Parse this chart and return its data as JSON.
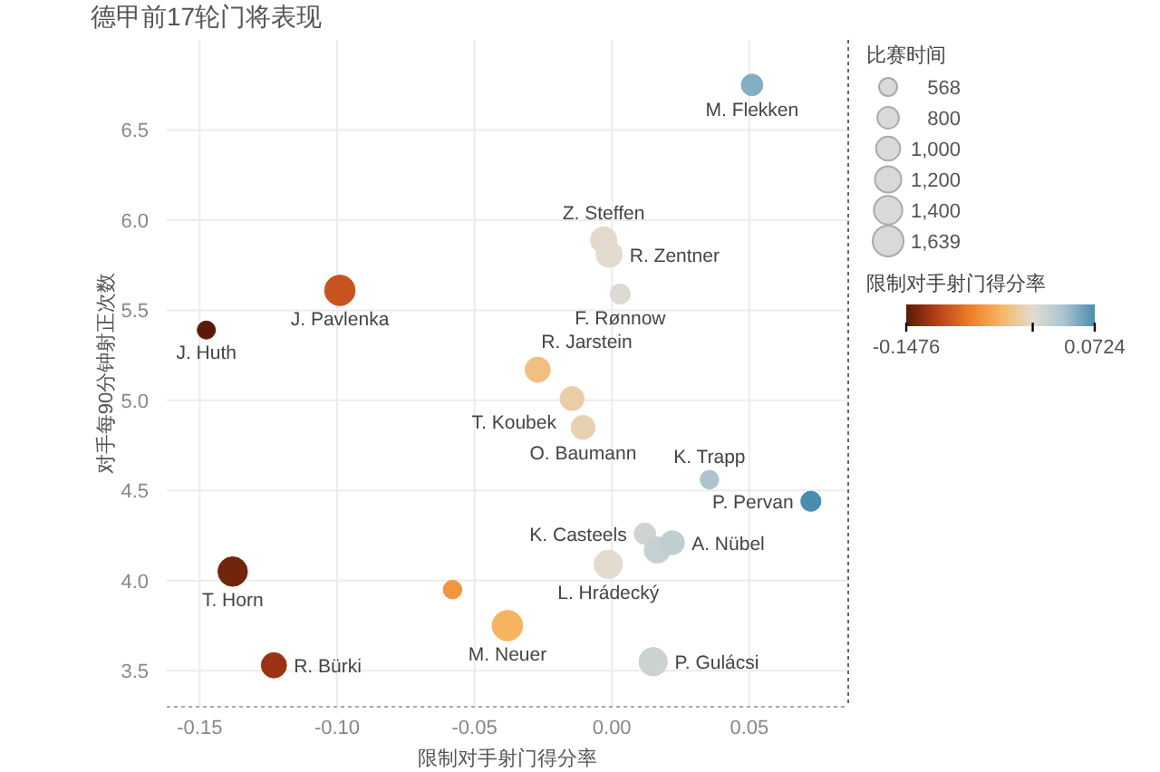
{
  "chart_data": {
    "type": "bubble",
    "title": "德甲前17轮门将表现",
    "xlabel": "限制对手射门得分率",
    "ylabel": "对手每90分钟射正次数",
    "legend_title": "比赛时间",
    "clabel": "限制对手射门得分率",
    "xlim": [
      -0.162,
      0.086
    ],
    "ylim": [
      3.3,
      7.0
    ],
    "xticks": [
      {
        "value": -0.15,
        "label": "-0.15"
      },
      {
        "value": -0.1,
        "label": "-0.10"
      },
      {
        "value": -0.05,
        "label": "-0.05"
      },
      {
        "value": 0,
        "label": "0.00"
      },
      {
        "value": 0.05,
        "label": "0.05"
      }
    ],
    "yticks": [
      3.5,
      {
        "value": 4,
        "label": "4.0"
      },
      4.5,
      {
        "value": 5,
        "label": "5.0"
      },
      5.5,
      {
        "value": 6,
        "label": "6.0"
      },
      6.5
    ],
    "grid": true,
    "legend": "right",
    "marker": "circle",
    "size_legend": [
      568,
      800,
      {
        "value": 1000,
        "label": "1,000"
      },
      {
        "value": 1200,
        "label": "1,200"
      },
      {
        "value": 1400,
        "label": "1,400"
      },
      {
        "value": 1639,
        "label": "1,639"
      }
    ],
    "clim": [
      -0.1476,
      0.0724
    ],
    "cticks": [
      -0.1476,
      {
        "value": 0,
        "label": null
      },
      0.0724
    ],
    "series": [
      {
        "name": "M. Flekken",
        "x": [
          0.051
        ],
        "values": [
          6.75
        ],
        "sizes": [
          800
        ],
        "cvalues": [
          0.051
        ]
      },
      {
        "name": "Z. Steffen",
        "x": [
          -0.003
        ],
        "values": [
          5.89
        ],
        "sizes": [
          1200
        ],
        "cvalues": [
          -0.003
        ]
      },
      {
        "name": "R. Zentner",
        "x": [
          -0.001
        ],
        "values": [
          5.81
        ],
        "sizes": [
          1200
        ],
        "cvalues": [
          -0.001
        ]
      },
      {
        "name": "F. Rønnow",
        "x": [
          0.003
        ],
        "values": [
          5.59
        ],
        "sizes": [
          700
        ],
        "cvalues": [
          0.003
        ]
      },
      {
        "name": "J. Pavlenka",
        "x": [
          -0.099
        ],
        "values": [
          5.61
        ],
        "sizes": [
          1600
        ],
        "cvalues": [
          -0.099
        ]
      },
      {
        "name": "J. Huth",
        "x": [
          -0.1476
        ],
        "values": [
          5.39
        ],
        "sizes": [
          568
        ],
        "cvalues": [
          -0.1476
        ]
      },
      {
        "name": "R. Jarstein",
        "x": [
          -0.027
        ],
        "values": [
          5.17
        ],
        "sizes": [
          1100
        ],
        "cvalues": [
          -0.027
        ]
      },
      {
        "name": "T. Koubek",
        "x": [
          -0.0145
        ],
        "values": [
          5.01
        ],
        "sizes": [
          1000
        ],
        "cvalues": [
          -0.0145
        ]
      },
      {
        "name": "O. Baumann",
        "x": [
          -0.0105
        ],
        "values": [
          4.85
        ],
        "sizes": [
          1000
        ],
        "cvalues": [
          -0.0105
        ]
      },
      {
        "name": "K. Trapp",
        "x": [
          0.0355
        ],
        "values": [
          4.56
        ],
        "sizes": [
          600
        ],
        "cvalues": [
          0.0355
        ]
      },
      {
        "name": "P. Pervan",
        "x": [
          0.0724
        ],
        "values": [
          4.44
        ],
        "sizes": [
          700
        ],
        "cvalues": [
          0.0724
        ]
      },
      {
        "name": "K. Casteels",
        "x": [
          0.012
        ],
        "values": [
          4.26
        ],
        "sizes": [
          800
        ],
        "cvalues": [
          0.012
        ]
      },
      {
        "x": [
          0.0165
        ],
        "values": [
          4.17
        ],
        "sizes": [
          1200
        ],
        "cvalues": [
          0.0165
        ]
      },
      {
        "name": "A. Nübel",
        "x": [
          0.022
        ],
        "values": [
          4.21
        ],
        "sizes": [
          1000
        ],
        "cvalues": [
          0.022
        ]
      },
      {
        "name": "L. Hrádecký",
        "x": [
          -0.0013
        ],
        "values": [
          4.09
        ],
        "sizes": [
          1400
        ],
        "cvalues": [
          -0.0013
        ]
      },
      {
        "name": "P. Gulácsi",
        "x": [
          0.015
        ],
        "values": [
          3.55
        ],
        "sizes": [
          1400
        ],
        "cvalues": [
          0.015
        ]
      },
      {
        "name": "M. Neuer",
        "x": [
          -0.038
        ],
        "values": [
          3.75
        ],
        "sizes": [
          1600
        ],
        "cvalues": [
          -0.038
        ]
      },
      {
        "x": [
          -0.058
        ],
        "values": [
          3.95
        ],
        "sizes": [
          600
        ],
        "cvalues": [
          -0.058
        ]
      },
      {
        "name": "T. Horn",
        "x": [
          -0.138
        ],
        "values": [
          4.05
        ],
        "sizes": [
          1500
        ],
        "cvalues": [
          -0.138
        ]
      },
      {
        "name": "R. Bürki",
        "x": [
          -0.123
        ],
        "values": [
          3.53
        ],
        "sizes": [
          1100
        ],
        "cvalues": [
          -0.123
        ]
      }
    ]
  }
}
